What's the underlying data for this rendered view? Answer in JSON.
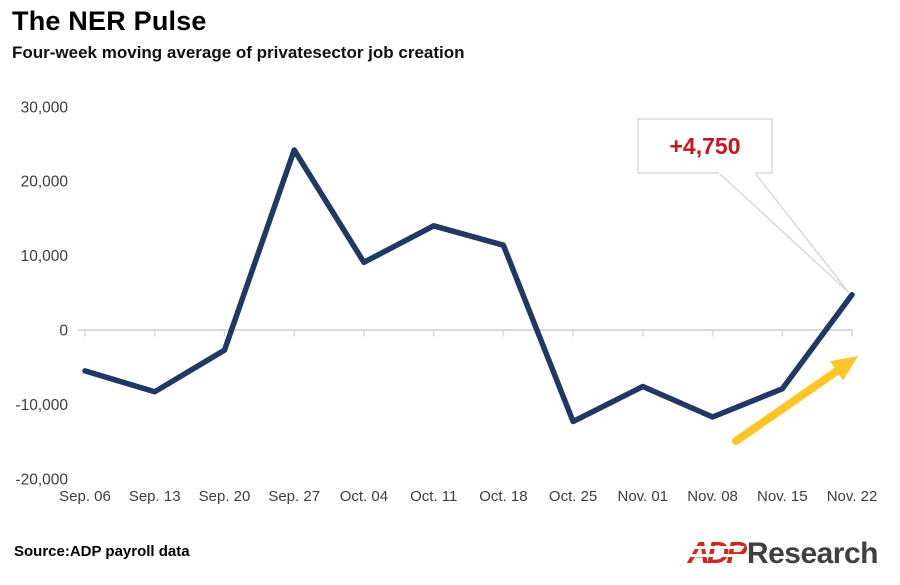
{
  "header": {
    "title": "The NER Pulse",
    "subtitle": "Four-week moving average of privatesector job creation"
  },
  "chart_data": {
    "type": "line",
    "title": "The NER Pulse",
    "subtitle": "Four-week moving average of privatesector job creation",
    "categories": [
      "Sep. 06",
      "Sep. 13",
      "Sep. 20",
      "Sep. 27",
      "Oct. 04",
      "Oct. 11",
      "Oct. 18",
      "Oct. 25",
      "Nov. 01",
      "Nov. 08",
      "Nov. 15",
      "Nov. 22"
    ],
    "values": [
      -5500,
      -8300,
      -2700,
      24200,
      9100,
      14000,
      11400,
      -12300,
      -7600,
      -11700,
      -7900,
      4750
    ],
    "xlabel": "",
    "ylabel": "",
    "ylim": [
      -20000,
      30000
    ],
    "yticks": [
      30000,
      20000,
      10000,
      0,
      -10000,
      -20000
    ],
    "grid": "zero-baseline-only",
    "legend": "none",
    "line_color": "#1f3864",
    "axis_color": "#d9d9d9",
    "annotation": {
      "label": "+4,750",
      "value": 4750,
      "target_category": "Nov. 22",
      "color": "#c7161d"
    },
    "arrow_color": "#ffc425"
  },
  "footer": {
    "source": "Source:ADP payroll data",
    "logo": {
      "adp": "ADP",
      "research": "Research"
    }
  }
}
